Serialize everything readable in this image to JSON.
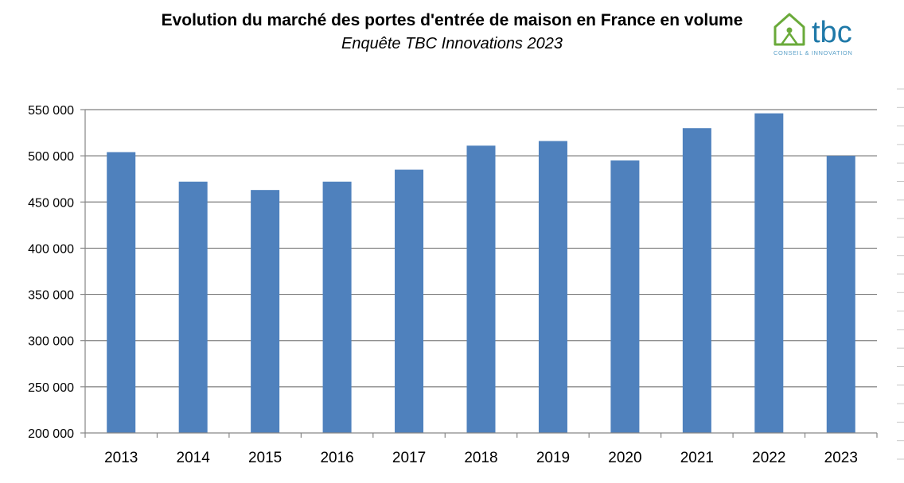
{
  "title": "Evolution du marché des portes d'entrée de maison en France en volume",
  "subtitle": "Enquête TBC Innovations 2023",
  "logo": {
    "word": "tbc",
    "tagline": "CONSEIL & INNOVATION",
    "colors": {
      "house": "#6aaa3a",
      "word": "#1f79a8",
      "tagline": "#5aa0c8"
    }
  },
  "colors": {
    "bar": "#4f81bd",
    "grid": "#7f7f7f",
    "axis": "#868686",
    "text": "#000000"
  },
  "chart_data": {
    "type": "bar",
    "categories": [
      "2013",
      "2014",
      "2015",
      "2016",
      "2017",
      "2018",
      "2019",
      "2020",
      "2021",
      "2022",
      "2023"
    ],
    "values": [
      504000,
      472000,
      463000,
      472000,
      485000,
      511000,
      516000,
      495000,
      530000,
      546000,
      500000
    ],
    "ylim": [
      200000,
      550000
    ],
    "yticks": [
      200000,
      250000,
      300000,
      350000,
      400000,
      450000,
      500000,
      550000
    ],
    "ytick_labels": [
      "200 000",
      "250 000",
      "300 000",
      "350 000",
      "400 000",
      "450 000",
      "500 000",
      "550 000"
    ],
    "xlabel": "",
    "ylabel": "",
    "grid": true,
    "legend": "none"
  }
}
